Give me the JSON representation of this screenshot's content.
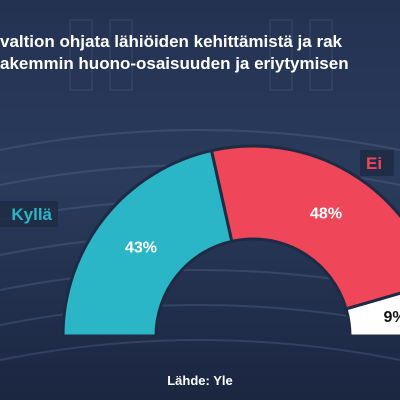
{
  "title_lines": [
    "valtion ohjata lähiöiden kehittämistä ja rak",
    "akemmin huono-osaisuuden ja eriytymisen"
  ],
  "source": "Lähde: Yle",
  "colors": {
    "kylla": "#2bb6c7",
    "ei": "#f0465a",
    "eos": "#ffffff",
    "label_text_light": "#ffffff",
    "label_text_dark": "#111111"
  },
  "chart_data": {
    "type": "pie",
    "variant": "semicircle-donut",
    "title": "valtion ohjata lähiöiden kehittämistä ja rak akemmin huono-osaisuuden ja eriytymisen",
    "slices": [
      {
        "label": "Kyllä",
        "value": 43,
        "value_label": "43%"
      },
      {
        "label": "Ei",
        "value": 48,
        "value_label": "48%"
      },
      {
        "label": "",
        "value": 9,
        "value_label": "9%"
      }
    ]
  }
}
